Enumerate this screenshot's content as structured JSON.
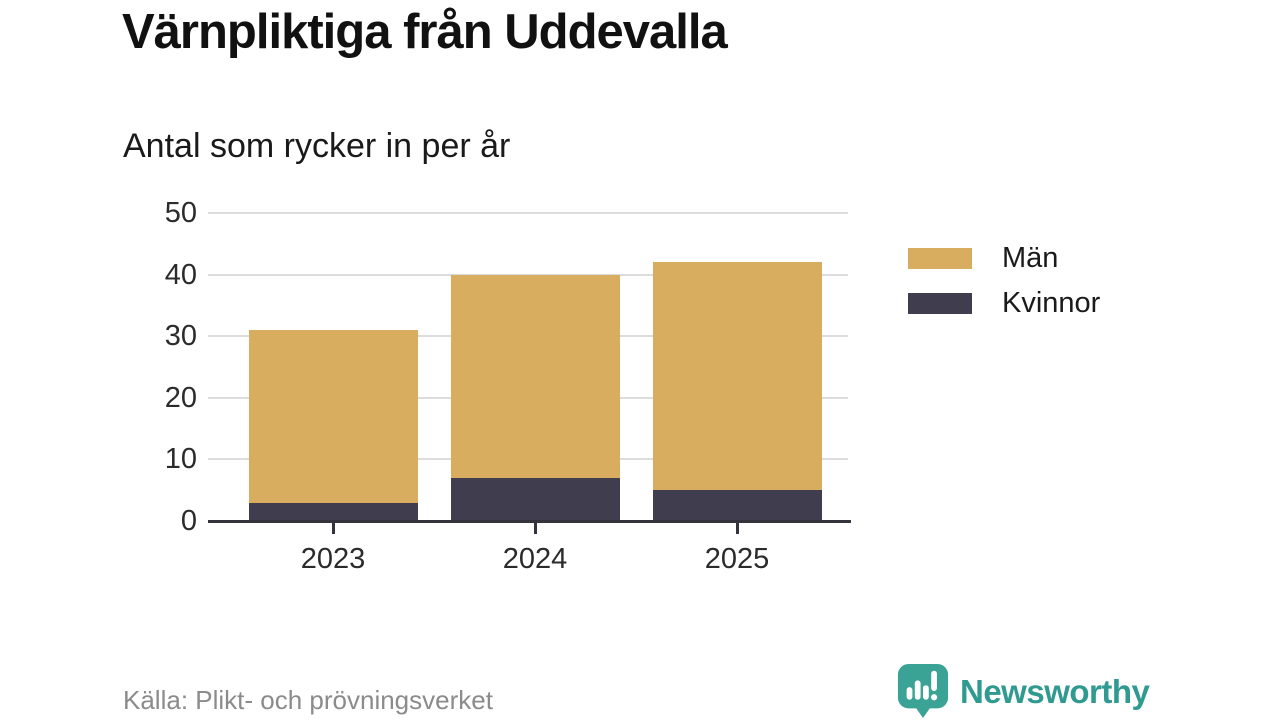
{
  "title": "Värnpliktiga från Uddevalla",
  "subtitle": "Antal som rycker in per år",
  "source": "Källa: Plikt- och prövningsverket",
  "branding": {
    "name": "Newsworthy",
    "wordmark_color": "#2f9a8f",
    "icon_color": "#3ba296"
  },
  "colors": {
    "men": "#d9ad5f",
    "women": "#403e4e",
    "gridline": "#dcdcdc",
    "axis": "#35343c",
    "title_text": "#111111",
    "body_text": "#2b2b2b",
    "muted_text": "#8b8b8b"
  },
  "legend": {
    "items": [
      {
        "label": "Män",
        "color": "#d9ad5f"
      },
      {
        "label": "Kvinnor",
        "color": "#403e4e"
      }
    ]
  },
  "chart_data": {
    "type": "bar",
    "stacked": true,
    "title": "Värnpliktiga från Uddevalla",
    "subtitle": "Antal som rycker in per år",
    "xlabel": "",
    "ylabel": "",
    "categories": [
      "2023",
      "2024",
      "2025"
    ],
    "series": [
      {
        "name": "Män",
        "color": "#d9ad5f",
        "values": [
          28,
          33,
          37
        ]
      },
      {
        "name": "Kvinnor",
        "color": "#403e4e",
        "values": [
          3,
          7,
          5
        ]
      }
    ],
    "stack_order_bottom_to_top": [
      "Kvinnor",
      "Män"
    ],
    "totals": [
      31,
      40,
      42
    ],
    "ylim": [
      0,
      50
    ],
    "y_ticks": [
      0,
      10,
      20,
      30,
      40,
      50
    ],
    "grid": true,
    "legend_position": "right"
  }
}
